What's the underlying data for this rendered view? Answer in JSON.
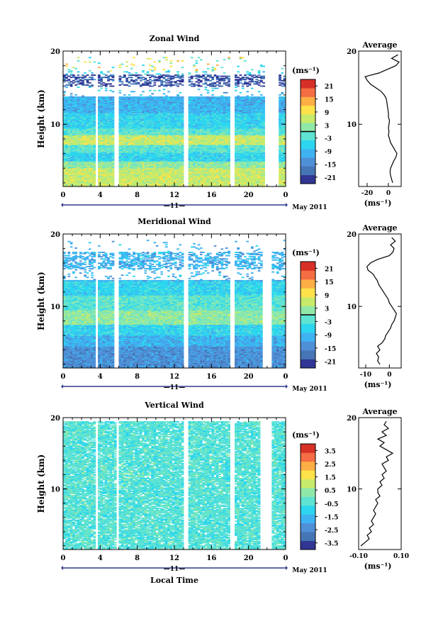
{
  "figure": {
    "date_label": "May 2011",
    "day_label": "11",
    "xlabel": "Local Time"
  },
  "chart_data": [
    {
      "type": "heatmap",
      "title": "Zonal Wind",
      "ylabel": "Height (km)",
      "xlabel": "",
      "x_ticks": [
        "0",
        "4",
        "8",
        "12",
        "16",
        "20",
        "0"
      ],
      "xlim": [
        0,
        24
      ],
      "y_ticks": [
        "20",
        "10"
      ],
      "ylim": [
        1.5,
        20
      ],
      "data_gaps_hours": [
        [
          3.4,
          3.8
        ],
        [
          5.6,
          5.95
        ],
        [
          13.1,
          13.45
        ],
        [
          17.9,
          18.6
        ],
        [
          21.8,
          23.3
        ]
      ],
      "colorbar": {
        "unit": "(ms⁻¹)",
        "min": -24,
        "max": 24,
        "ticks": [
          "21",
          "15",
          "9",
          "3",
          "-3",
          "-9",
          "-15",
          "-21"
        ],
        "zero_line": true
      },
      "average_profile": {
        "title": "Average",
        "xlabel": "(ms⁻¹)",
        "x_ticks": [
          "-20",
          "0"
        ],
        "xlim": [
          -28,
          12
        ],
        "y_ticks": [
          "20",
          "10"
        ],
        "height_km": [
          2,
          2.5,
          3,
          3.5,
          4,
          4.5,
          5,
          5.5,
          6,
          6.5,
          7,
          7.5,
          8,
          8.5,
          9,
          9.5,
          10,
          10.5,
          11,
          11.5,
          12,
          12.5,
          13,
          13.5,
          14,
          14.5,
          15,
          15.5,
          16,
          16.5,
          17,
          17.5,
          18,
          18.5,
          19,
          19.5
        ],
        "wind_ms": [
          4,
          3,
          2,
          1.5,
          2,
          3.5,
          5,
          7,
          8,
          6,
          4,
          2,
          1,
          0,
          0.5,
          0,
          0.5,
          1,
          0,
          0,
          -0.5,
          -1,
          -1.5,
          -2,
          -4,
          -7,
          -12,
          -17,
          -20,
          -22,
          -9,
          -1,
          7,
          10,
          3,
          9
        ]
      }
    },
    {
      "type": "heatmap",
      "title": "Meridional Wind",
      "ylabel": "Height (km)",
      "xlabel": "",
      "x_ticks": [
        "0",
        "4",
        "8",
        "12",
        "16",
        "20",
        "0"
      ],
      "xlim": [
        0,
        24
      ],
      "y_ticks": [
        "20",
        "10"
      ],
      "ylim": [
        1.5,
        20
      ],
      "data_gaps_hours": [
        [
          3.4,
          3.8
        ],
        [
          5.6,
          5.95
        ],
        [
          13.1,
          13.45
        ],
        [
          17.9,
          18.6
        ],
        [
          21.4,
          22.6
        ]
      ],
      "colorbar": {
        "unit": "(ms⁻¹)",
        "min": -24,
        "max": 24,
        "ticks": [
          "21",
          "15",
          "9",
          "3",
          "-3",
          "-9",
          "-15",
          "-21"
        ],
        "zero_line": true
      },
      "average_profile": {
        "title": "Average",
        "xlabel": "(ms⁻¹)",
        "x_ticks": [
          "-10",
          "0"
        ],
        "xlim": [
          -13,
          5
        ],
        "y_ticks": [
          "20",
          "10"
        ],
        "height_km": [
          2,
          2.5,
          3,
          3.5,
          4,
          4.5,
          5,
          5.5,
          6,
          6.5,
          7,
          7.5,
          8,
          8.5,
          9,
          9.5,
          10,
          10.5,
          11,
          11.5,
          12,
          12.5,
          13,
          13.5,
          14,
          14.5,
          15,
          15.5,
          16,
          16.5,
          17,
          17.5,
          18,
          18.5,
          19,
          19.5
        ],
        "wind_ms": [
          -4,
          -5,
          -4.5,
          -5.5,
          -4,
          -5,
          -3,
          -2,
          -1.5,
          -0.5,
          0.5,
          1,
          2,
          2.5,
          3,
          2,
          1,
          0,
          -0.5,
          -1.5,
          -2.5,
          -3.5,
          -4.5,
          -5,
          -6,
          -7,
          -9,
          -9.5,
          -8,
          -5,
          0,
          1.5,
          2,
          0.5,
          2.5,
          1
        ]
      }
    },
    {
      "type": "heatmap",
      "title": "Vertical Wind",
      "ylabel": "Height (km)",
      "xlabel": "Local Time",
      "x_ticks": [
        "0",
        "4",
        "8",
        "12",
        "16",
        "20",
        "0"
      ],
      "xlim": [
        0,
        24
      ],
      "y_ticks": [
        "20",
        "10"
      ],
      "ylim": [
        1.5,
        20
      ],
      "data_gaps_hours": [
        [
          3.5,
          3.8
        ],
        [
          5.7,
          5.95
        ],
        [
          13.1,
          13.45
        ],
        [
          17.9,
          18.6
        ],
        [
          21.3,
          22.6
        ]
      ],
      "colorbar": {
        "unit": "(ms⁻¹)",
        "min": -4,
        "max": 4,
        "ticks": [
          "3.5",
          "2.5",
          "1.5",
          "0.5",
          "-0.5",
          "-1.5",
          "-2.5",
          "-3.5"
        ],
        "zero_line": false
      },
      "average_profile": {
        "title": "Average",
        "xlabel": "(ms⁻¹)",
        "x_ticks": [
          "-0.10",
          "0.10"
        ],
        "xlim": [
          -0.1,
          0.1
        ],
        "y_ticks": [
          "20",
          "10"
        ],
        "height_km": [
          2,
          2.5,
          3,
          3.5,
          4,
          4.5,
          5,
          5.5,
          6,
          6.5,
          7,
          7.5,
          8,
          8.5,
          9,
          9.5,
          10,
          10.5,
          11,
          11.5,
          12,
          12.5,
          13,
          13.5,
          14,
          14.5,
          15,
          15.5,
          16,
          16.5,
          17,
          17.5,
          18,
          18.5,
          19,
          19.5
        ],
        "wind_ms": [
          -0.09,
          -0.07,
          -0.05,
          -0.06,
          -0.04,
          -0.05,
          -0.03,
          -0.04,
          -0.03,
          -0.02,
          -0.03,
          -0.02,
          -0.01,
          -0.02,
          0,
          -0.01,
          -0.01,
          0.01,
          0,
          0.02,
          0.01,
          0.03,
          0.02,
          0.01,
          0.04,
          0.03,
          0.06,
          0.03,
          0,
          0.02,
          -0.01,
          0.03,
          0.01,
          0.04,
          0.02,
          0.03
        ]
      }
    }
  ]
}
